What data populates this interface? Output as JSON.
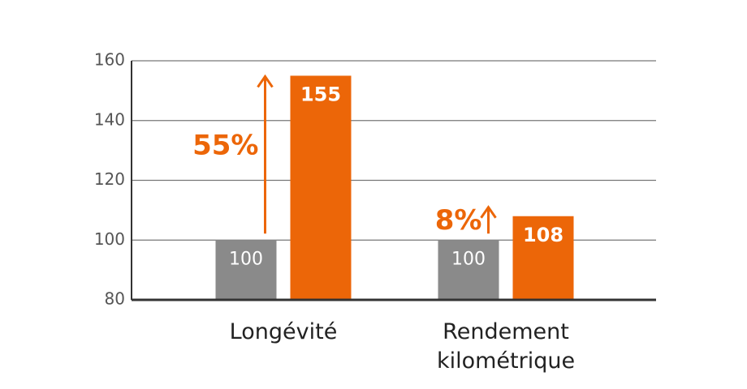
{
  "chart_data": {
    "type": "bar",
    "categories": [
      "Longévité",
      "Rendement kilométrique"
    ],
    "series": [
      {
        "color": "#8a8a8a",
        "values": [
          100,
          100
        ]
      },
      {
        "color": "#ec6608",
        "values": [
          155,
          108
        ]
      }
    ],
    "annotations": [
      "55%",
      "8%"
    ],
    "annotation_color": "#ec6608",
    "ylim": [
      80,
      160
    ],
    "yticks": [
      80,
      100,
      120,
      140,
      160
    ],
    "grid": true
  }
}
